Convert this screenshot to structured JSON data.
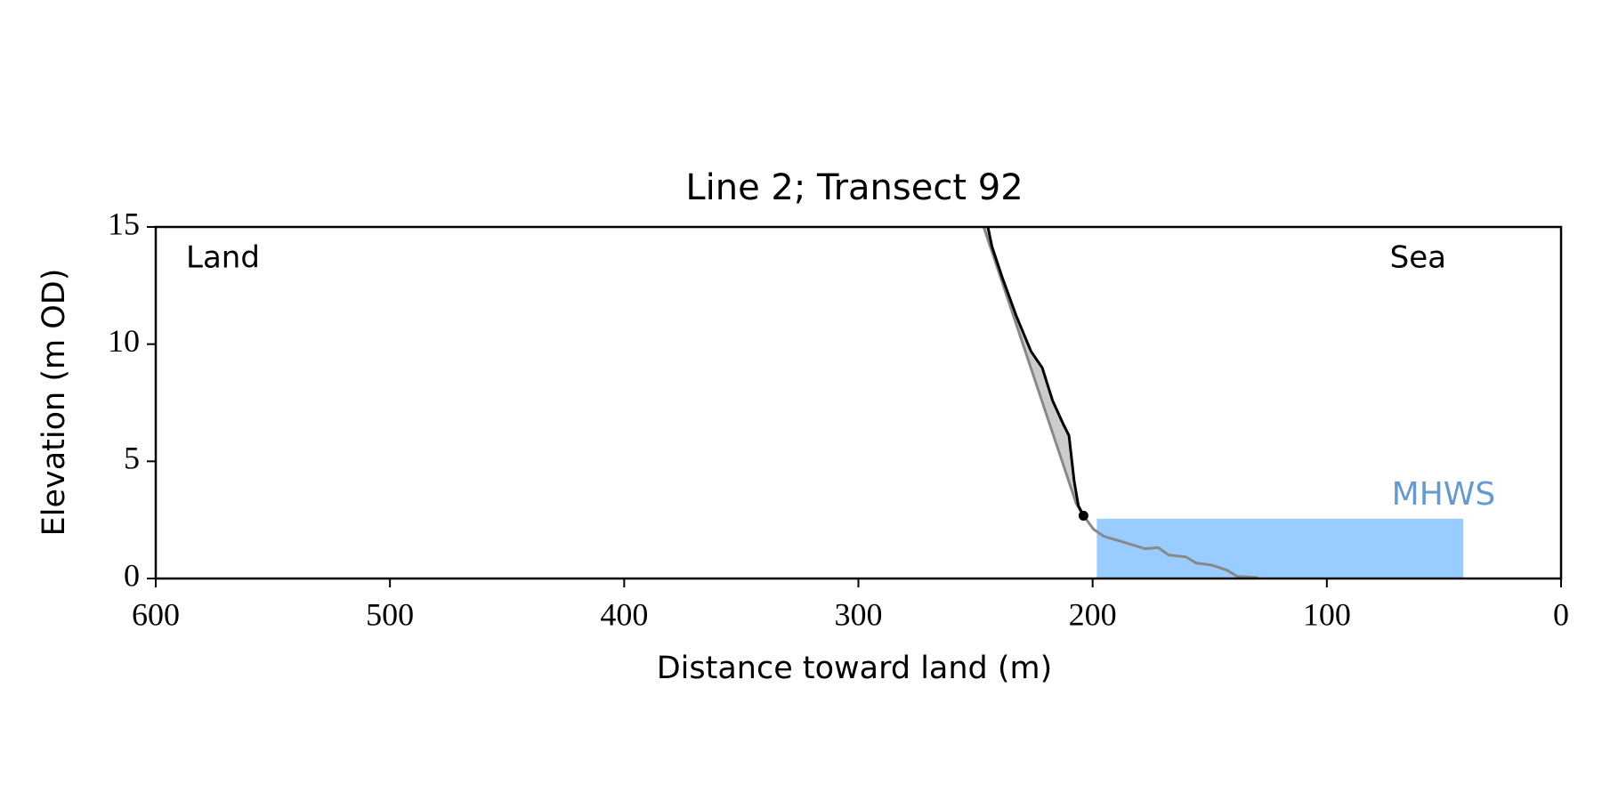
{
  "chart_data": {
    "type": "line",
    "title": "Line 2; Transect 92",
    "xlabel": "Distance toward land (m)",
    "ylabel": "Elevation (m OD)",
    "annotations": [
      "Land",
      "Sea"
    ],
    "xlim": [
      600,
      0
    ],
    "ylim": [
      0,
      15
    ],
    "xticks": [
      600,
      500,
      400,
      300,
      200,
      100,
      0
    ],
    "yticks": [
      0,
      5,
      10,
      15
    ],
    "series": [
      {
        "color": "#000000",
        "x": [
          244.7,
          243.0,
          238.6,
          232.5,
          226.3,
          221.5,
          217.1,
          212.7,
          210.1,
          207.9,
          206.1,
          203.9
        ],
        "values": [
          15,
          14.17,
          12.85,
          11.18,
          9.69,
          8.99,
          7.59,
          6.62,
          6.1,
          4.17,
          3.11,
          2.68
        ]
      },
      {
        "color": "#888888",
        "x": [
          246.5,
          207.0,
          203.9,
          199.6,
          195.2,
          186.4,
          177.6,
          171.9,
          167.5,
          160.1,
          155.7,
          149.1,
          142.5,
          138.2,
          129.4
        ],
        "values": [
          15,
          3.2,
          2.68,
          2.1,
          1.8,
          1.54,
          1.27,
          1.32,
          1.0,
          0.92,
          0.66,
          0.57,
          0.35,
          0.09,
          0.04
        ]
      }
    ],
    "shade_color": "#cccccc",
    "mhws": {
      "label": "MHWS",
      "level": 2.55,
      "x": [
        198.2,
        41.7
      ],
      "color": "#99ccff",
      "label_color": "#6699cc"
    }
  }
}
